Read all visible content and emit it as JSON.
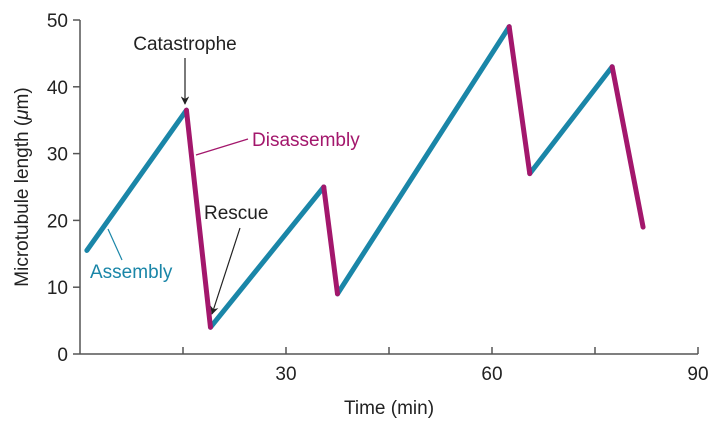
{
  "chart_data": {
    "type": "line",
    "xlabel": "Time (min)",
    "ylabel": "Microtubule length (",
    "ylabel_mu": "μ",
    "ylabel_unit": "m)",
    "xlim": [
      0,
      90
    ],
    "ylim": [
      0,
      50
    ],
    "x_ticks": [
      30,
      60,
      90
    ],
    "x_minor_ticks": [
      15,
      45,
      75
    ],
    "y_ticks": [
      0,
      10,
      20,
      30,
      40,
      50
    ],
    "grid": false,
    "colors": {
      "assembly": "#1a86a8",
      "disassembly": "#a3176c",
      "axis": "#555555"
    },
    "series": [
      {
        "name": "Assembly",
        "segments": [
          [
            [
              1,
              15.5
            ],
            [
              15.5,
              36.5
            ]
          ],
          [
            [
              19,
              4
            ],
            [
              35.5,
              25
            ]
          ],
          [
            [
              37.5,
              9
            ],
            [
              62.5,
              49
            ]
          ],
          [
            [
              65.5,
              27
            ],
            [
              77.5,
              43
            ]
          ]
        ]
      },
      {
        "name": "Disassembly",
        "segments": [
          [
            [
              15.5,
              36.5
            ],
            [
              19,
              4
            ]
          ],
          [
            [
              35.5,
              25
            ],
            [
              37.5,
              9
            ]
          ],
          [
            [
              62.5,
              49
            ],
            [
              65.5,
              27
            ]
          ],
          [
            [
              77.5,
              43
            ],
            [
              82,
              19
            ]
          ]
        ]
      }
    ],
    "annotations": {
      "catastrophe": "Catastrophe",
      "disassembly": "Disassembly",
      "rescue": "Rescue",
      "assembly": "Assembly"
    }
  }
}
